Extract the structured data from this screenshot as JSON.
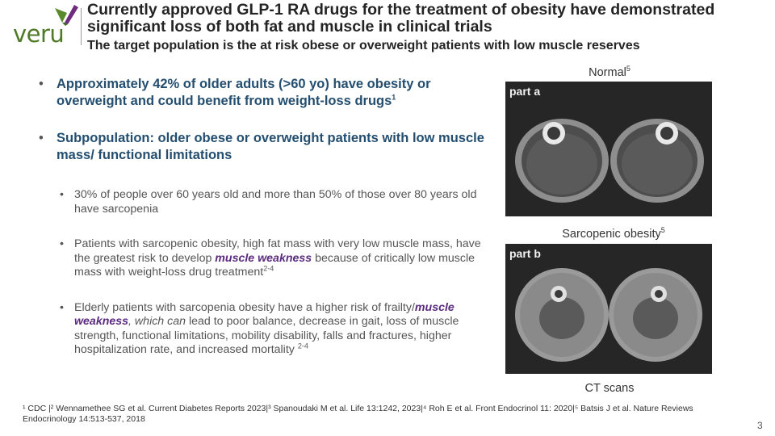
{
  "logo": {
    "text": "veru"
  },
  "header": {
    "title": "Currently approved GLP-1 RA drugs for the treatment of obesity have demonstrated significant loss of both fat and muscle in clinical trials",
    "subtitle": "The target population is the at risk obese or overweight patients with low muscle reserves"
  },
  "bullets": {
    "b1_text": "Approximately 42% of older adults (>60 yo) have obesity or overweight and could benefit from weight-loss drugs",
    "b1_sup": "1",
    "b2_text": "Subpopulation: older obese or overweight patients with low muscle mass/ functional limitations",
    "s1_text": "30% of people over 60 years old and more than 50% of those over 80 years old have sarcopenia",
    "s2_pre": "Patients with sarcopenic obesity, high fat mass with very low muscle mass, have the greatest risk to develop ",
    "s2_emph": "muscle weakness",
    "s2_post": " because of critically low muscle mass with weight-loss drug treatment",
    "s2_sup": "2-4",
    "s3_pre": "Elderly patients with sarcopenia obesity have a higher risk of frailty/",
    "s3_emph": "muscle weakness",
    "s3_ital": ", which can",
    "s3_post": " lead to poor balance, decrease in gait, loss of muscle strength, functional limitations, mobility disability, falls and fractures, higher hospitalization rate, and increased mortality ",
    "s3_sup": "2-4"
  },
  "images": {
    "normal_label": "Normal",
    "normal_sup": "5",
    "part_a": "part a",
    "sarcopenic_label": "Sarcopenic obesity",
    "sarcopenic_sup": "5",
    "part_b": "part b",
    "caption": "CT scans"
  },
  "references": "¹ CDC |² Wennamethee SG et al. Current Diabetes Reports 2023|³ Spanoudaki M et al. Life 13:1242, 2023|⁴ Roh E et al. Front Endocrinol 11: 2020|⁵ Batsis J et al. Nature Reviews Endocrinology 14:513-537, 2018",
  "page_number": "3",
  "colors": {
    "brand_green": "#4f7a28",
    "bullet_blue": "#244e6f",
    "emphasis_purple": "#5a2a7f"
  }
}
